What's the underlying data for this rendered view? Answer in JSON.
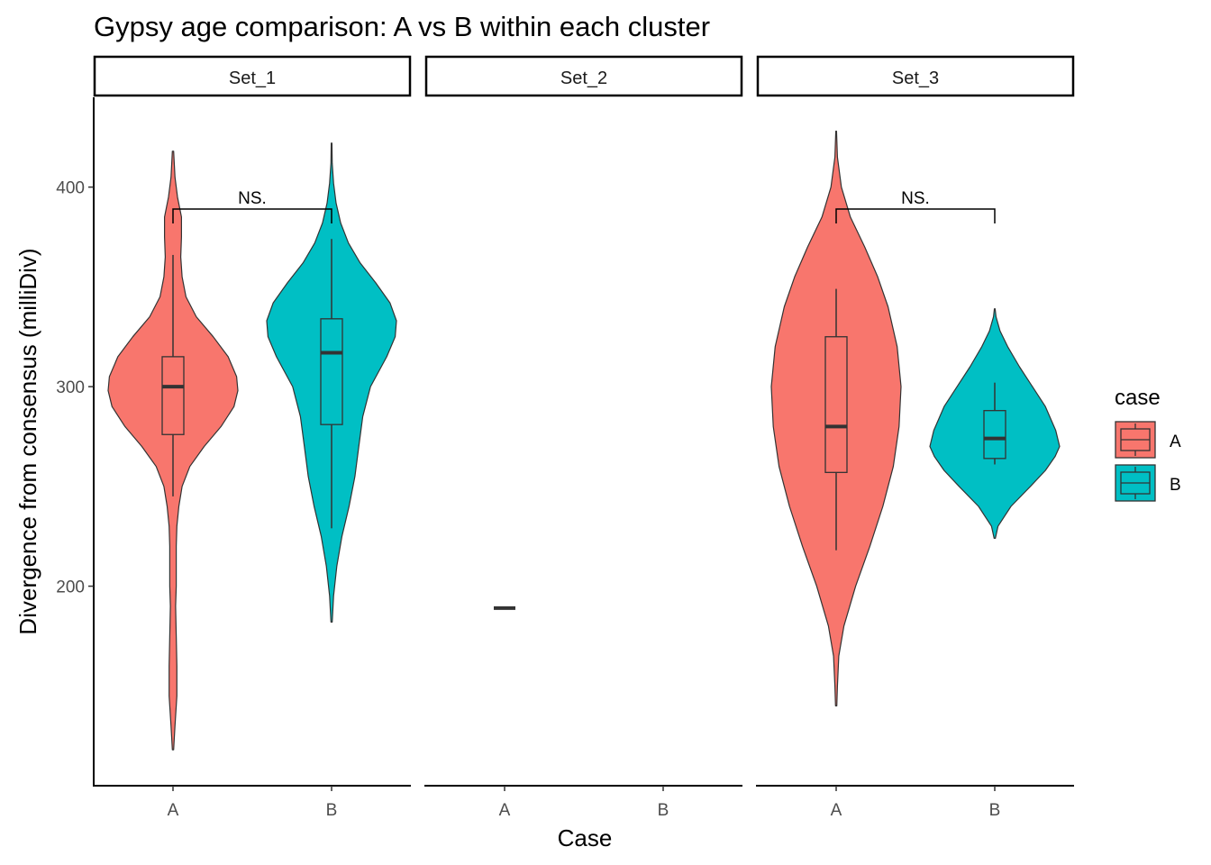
{
  "chart_data": {
    "type": "violin",
    "title": "Gypsy age comparison: A vs B within each cluster",
    "xlabel": "Case",
    "ylabel": "Divergence from consensus (milliDiv)",
    "ylim": [
      100,
      445
    ],
    "yticks": [
      200,
      300,
      400
    ],
    "categories": [
      "A",
      "B"
    ],
    "legend": {
      "title": "case",
      "position": "right",
      "entries": [
        {
          "label": "A",
          "color": "#F8766D"
        },
        {
          "label": "B",
          "color": "#00BFC4"
        }
      ]
    },
    "panels": [
      {
        "label": "Set_1",
        "groups": [
          {
            "case": "A",
            "box": {
              "whisker_low": 245,
              "q1": 276,
              "median": 300,
              "q3": 315,
              "whisker_high": 366
            },
            "density": [
              [
                118,
                0.01
              ],
              [
                130,
                0.03
              ],
              [
                145,
                0.06
              ],
              [
                160,
                0.06
              ],
              [
                175,
                0.05
              ],
              [
                190,
                0.04
              ],
              [
                200,
                0.05
              ],
              [
                210,
                0.05
              ],
              [
                220,
                0.05
              ],
              [
                230,
                0.06
              ],
              [
                240,
                0.09
              ],
              [
                250,
                0.14
              ],
              [
                260,
                0.26
              ],
              [
                270,
                0.48
              ],
              [
                280,
                0.74
              ],
              [
                290,
                0.94
              ],
              [
                298,
                1.0
              ],
              [
                305,
                0.98
              ],
              [
                315,
                0.85
              ],
              [
                325,
                0.62
              ],
              [
                335,
                0.36
              ],
              [
                345,
                0.2
              ],
              [
                355,
                0.14
              ],
              [
                365,
                0.12
              ],
              [
                375,
                0.13
              ],
              [
                385,
                0.13
              ],
              [
                395,
                0.07
              ],
              [
                405,
                0.03
              ],
              [
                418,
                0.01
              ]
            ]
          },
          {
            "case": "B",
            "box": {
              "whisker_low": 229,
              "q1": 281,
              "median": 317,
              "q3": 334,
              "whisker_high": 374
            },
            "density": [
              [
                182,
                0.01
              ],
              [
                195,
                0.03
              ],
              [
                210,
                0.08
              ],
              [
                225,
                0.16
              ],
              [
                240,
                0.27
              ],
              [
                255,
                0.36
              ],
              [
                270,
                0.42
              ],
              [
                285,
                0.48
              ],
              [
                300,
                0.6
              ],
              [
                315,
                0.85
              ],
              [
                325,
                0.98
              ],
              [
                333,
                1.0
              ],
              [
                342,
                0.9
              ],
              [
                352,
                0.68
              ],
              [
                362,
                0.44
              ],
              [
                372,
                0.26
              ],
              [
                382,
                0.14
              ],
              [
                392,
                0.07
              ],
              [
                402,
                0.03
              ],
              [
                412,
                0.01
              ],
              [
                422,
                0.005
              ]
            ]
          }
        ],
        "annotation": {
          "text": "NS.",
          "from": "A",
          "to": "B",
          "y": 389
        }
      },
      {
        "label": "Set_2",
        "groups": [
          {
            "case": "A",
            "point": 189
          }
        ]
      },
      {
        "label": "Set_3",
        "groups": [
          {
            "case": "A",
            "box": {
              "whisker_low": 218,
              "q1": 257,
              "median": 280,
              "q3": 325,
              "whisker_high": 349
            },
            "density": [
              [
                140,
                0.01
              ],
              [
                150,
                0.02
              ],
              [
                165,
                0.04
              ],
              [
                180,
                0.12
              ],
              [
                200,
                0.3
              ],
              [
                220,
                0.52
              ],
              [
                240,
                0.72
              ],
              [
                260,
                0.88
              ],
              [
                280,
                0.97
              ],
              [
                300,
                1.0
              ],
              [
                320,
                0.94
              ],
              [
                340,
                0.8
              ],
              [
                355,
                0.64
              ],
              [
                370,
                0.44
              ],
              [
                385,
                0.22
              ],
              [
                400,
                0.08
              ],
              [
                415,
                0.02
              ],
              [
                428,
                0.005
              ]
            ]
          },
          {
            "case": "B",
            "box": {
              "whisker_low": 261,
              "q1": 264,
              "median": 274,
              "q3": 288,
              "whisker_high": 302
            },
            "density": [
              [
                224,
                0.01
              ],
              [
                230,
                0.05
              ],
              [
                240,
                0.25
              ],
              [
                250,
                0.55
              ],
              [
                258,
                0.78
              ],
              [
                265,
                0.93
              ],
              [
                270,
                1.0
              ],
              [
                278,
                0.94
              ],
              [
                290,
                0.78
              ],
              [
                300,
                0.58
              ],
              [
                310,
                0.38
              ],
              [
                320,
                0.2
              ],
              [
                328,
                0.08
              ],
              [
                335,
                0.02
              ],
              [
                339,
                0.005
              ]
            ]
          }
        ],
        "annotation": {
          "text": "NS.",
          "from": "A",
          "to": "B",
          "y": 389
        }
      }
    ]
  }
}
